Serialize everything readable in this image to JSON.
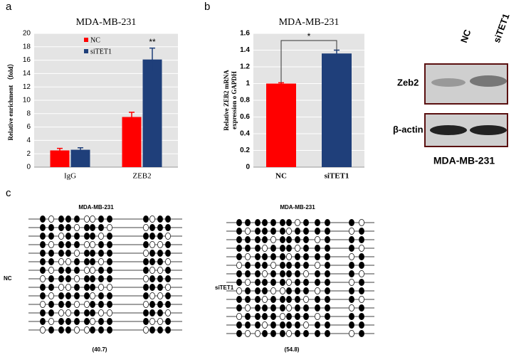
{
  "chart_data": [
    {
      "type": "bar",
      "title": "MDA-MB-231",
      "ylabel": [
        "Relative enrichment （fold）"
      ],
      "categories": [
        "IgG",
        "ZEB2"
      ],
      "series": [
        {
          "name": "NC",
          "color": "#ff0000",
          "values": [
            2.5,
            7.5
          ],
          "errors": [
            0.3,
            0.7
          ]
        },
        {
          "name": "siTET1",
          "color": "#1f3f7a",
          "values": [
            2.6,
            16.1
          ],
          "errors": [
            0.3,
            1.7
          ]
        }
      ],
      "annotations": [
        "**"
      ],
      "ylim": [
        0,
        20
      ],
      "yticks": [
        0,
        2,
        4,
        6,
        8,
        10,
        12,
        14,
        16,
        18,
        20
      ],
      "grid": true
    },
    {
      "type": "bar",
      "title": "MDA-MB-231",
      "ylabel": [
        "Relative  ZEB2  mRNA",
        "expression o GAPDH"
      ],
      "categories": [
        "NC",
        "siTET1"
      ],
      "series": [
        {
          "color": "#ff0000",
          "values": [
            1.0,
            null
          ],
          "errors": [
            0.01,
            null
          ]
        },
        {
          "color": "#1f3f7a",
          "values": [
            null,
            1.36
          ],
          "errors": [
            null,
            0.04
          ]
        }
      ],
      "annotations": [
        "*"
      ],
      "ylim": [
        0,
        1.6
      ],
      "yticks": [
        0,
        0.2,
        0.4,
        0.6,
        0.8,
        1,
        1.2,
        1.4,
        1.6
      ],
      "grid": true
    }
  ],
  "panel_labels": [
    "a",
    "b",
    "c"
  ],
  "blot": {
    "lanes": [
      "NC",
      "siTET1"
    ],
    "rows": [
      "Zeb2",
      "β-actin"
    ],
    "caption": "MDA-MB-231"
  },
  "methylation": {
    "panels": [
      {
        "title": "MDA-MB-231",
        "group": "NC",
        "ratio": "(40.7)"
      },
      {
        "title": "MDA-MB-231",
        "group": "siTET1",
        "ratio": "(54.8)"
      }
    ]
  }
}
